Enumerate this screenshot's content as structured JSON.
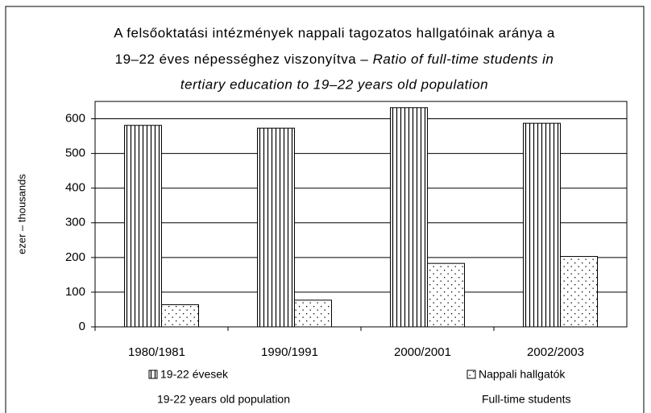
{
  "chart_data": {
    "type": "bar",
    "title": [
      "A felsőoktatási intézmények nappali tagozatos hallgatóinak aránya a",
      "19–22 éves népességhez viszonyítva – ",
      "Ratio of full-time students in",
      "tertiary education to 19–22 years old population"
    ],
    "ylabel": "ezer – thousands",
    "categories": [
      "1980/1981",
      "1990/1991",
      "2000/2001",
      "2002/2003"
    ],
    "series": [
      {
        "name": "19-22 évesek",
        "name_en": "19-22 years old population",
        "color": "#000000",
        "pattern": "vertical-lines",
        "values": [
          581,
          573,
          632,
          587
        ]
      },
      {
        "name": "Nappali hallgatók",
        "name_en": "Full-time students",
        "color": "#000000",
        "pattern": "dots",
        "values": [
          64,
          77,
          183,
          203
        ]
      }
    ],
    "ylim": [
      0,
      650
    ],
    "yticks": [
      0,
      100,
      200,
      300,
      400,
      500,
      600
    ],
    "grid": true
  }
}
